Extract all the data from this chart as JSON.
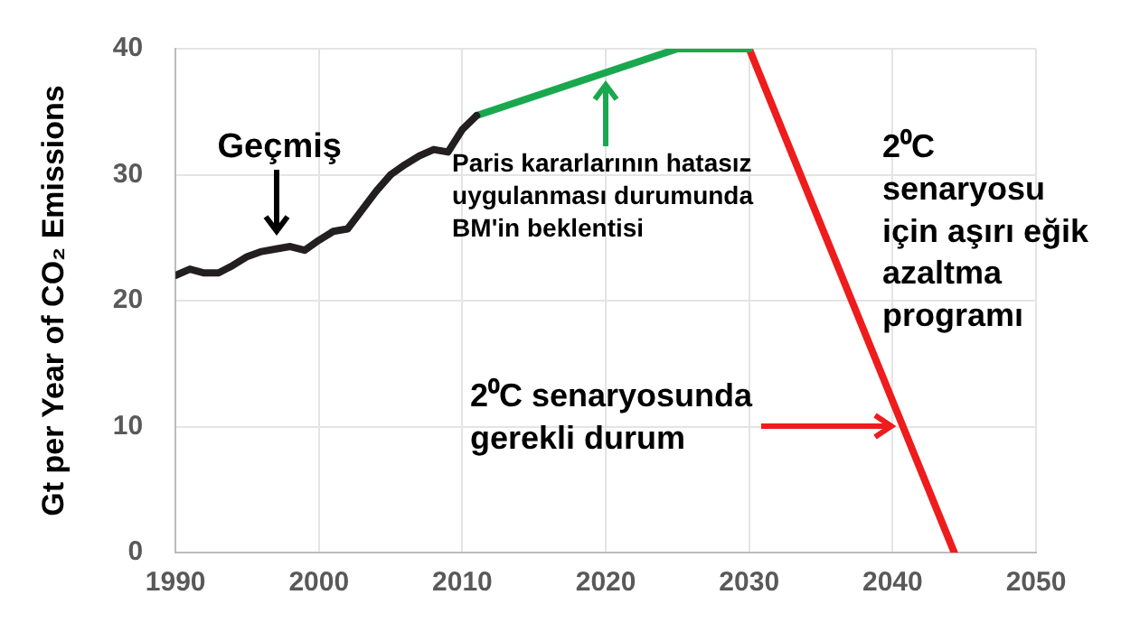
{
  "chart_data": {
    "type": "line",
    "ylabel": "Gt per Year of CO₂ Emissions",
    "xlim": [
      1990,
      2050
    ],
    "xticks": [
      1990,
      2000,
      2010,
      2020,
      2030,
      2040,
      2050
    ],
    "ylim": [
      0,
      40
    ],
    "yticks": [
      0,
      10,
      20,
      30,
      40
    ],
    "grid": true,
    "legend": false,
    "marker": "none",
    "line_style": "solid",
    "series": [
      {
        "color": "#231f20",
        "x": [
          1990,
          1991,
          1992,
          1993,
          1994,
          1995,
          1996,
          1997,
          1998,
          1999,
          2000,
          2001,
          2002,
          2003,
          2004,
          2005,
          2006,
          2007,
          2008,
          2009,
          2010,
          2011
        ],
        "values": [
          22.0,
          22.5,
          22.2,
          22.2,
          22.8,
          23.5,
          23.9,
          24.1,
          24.3,
          24.0,
          24.8,
          25.5,
          25.7,
          27.2,
          28.7,
          30.0,
          30.8,
          31.5,
          32.0,
          31.8,
          33.6,
          34.7
        ]
      },
      {
        "color": "#1aa84f",
        "x": [
          2011,
          2025,
          2030
        ],
        "values": [
          34.7,
          40,
          40
        ]
      },
      {
        "color": "#ee1c1c",
        "x": [
          2030,
          2044.3
        ],
        "values": [
          40,
          0
        ]
      }
    ],
    "annotations": [
      {
        "text": "Geçmiş",
        "x": 1997,
        "y": 25
      },
      {
        "text": "Paris kararlarının hatasız uygulanması durumunda BM'in beklentisi",
        "x": 2020,
        "y": 38
      },
      "2⁰C senaryosunda gerekli durum",
      "2⁰C senaryosu için aşırı eğik azaltma programı"
    ]
  }
}
